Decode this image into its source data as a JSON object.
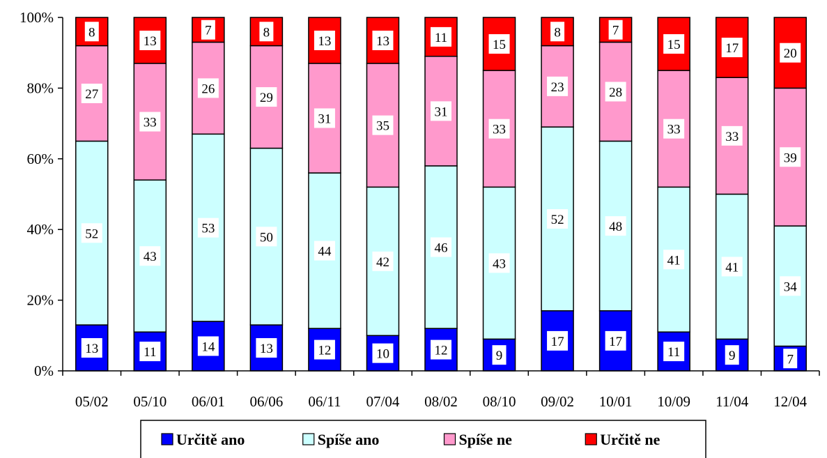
{
  "chart_data": {
    "type": "bar",
    "stacked": true,
    "title": "",
    "xlabel": "",
    "ylabel": "",
    "ylim": [
      0,
      100
    ],
    "y_ticks": [
      "0%",
      "20%",
      "40%",
      "60%",
      "80%",
      "100%"
    ],
    "grid": false,
    "legend_position": "bottom",
    "categories": [
      "05/02",
      "05/10",
      "06/01",
      "06/06",
      "06/11",
      "07/04",
      "08/02",
      "08/10",
      "09/02",
      "10/01",
      "10/09",
      "11/04",
      "12/04"
    ],
    "series": [
      {
        "name": "Určitě ano",
        "color": "#0000FF",
        "values": [
          13,
          11,
          14,
          13,
          12,
          10,
          12,
          9,
          17,
          17,
          11,
          9,
          7
        ]
      },
      {
        "name": "Spíše ano",
        "color": "#CCFFFF",
        "values": [
          52,
          43,
          53,
          50,
          44,
          42,
          46,
          43,
          52,
          48,
          41,
          41,
          34
        ]
      },
      {
        "name": "Spíše ne",
        "color": "#FF99CC",
        "values": [
          27,
          33,
          26,
          29,
          31,
          35,
          31,
          33,
          23,
          28,
          33,
          33,
          39
        ]
      },
      {
        "name": "Určitě ne",
        "color": "#FF0000",
        "values": [
          8,
          13,
          7,
          8,
          13,
          13,
          11,
          15,
          8,
          7,
          15,
          17,
          20
        ]
      }
    ]
  }
}
